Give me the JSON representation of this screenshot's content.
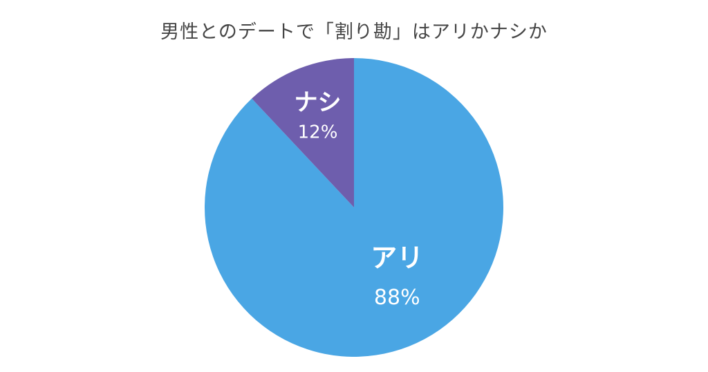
{
  "chart_data": {
    "type": "pie",
    "title": "男性とのデートで「割り勘」はアリかナシか",
    "slices": [
      {
        "label": "アリ",
        "value": 88,
        "value_label": "88%",
        "color": "#4aa6e4"
      },
      {
        "label": "ナシ",
        "value": 12,
        "value_label": "12%",
        "color": "#6e5ead"
      }
    ],
    "start_angle_deg": 0,
    "direction": "clockwise",
    "legend": "none"
  }
}
